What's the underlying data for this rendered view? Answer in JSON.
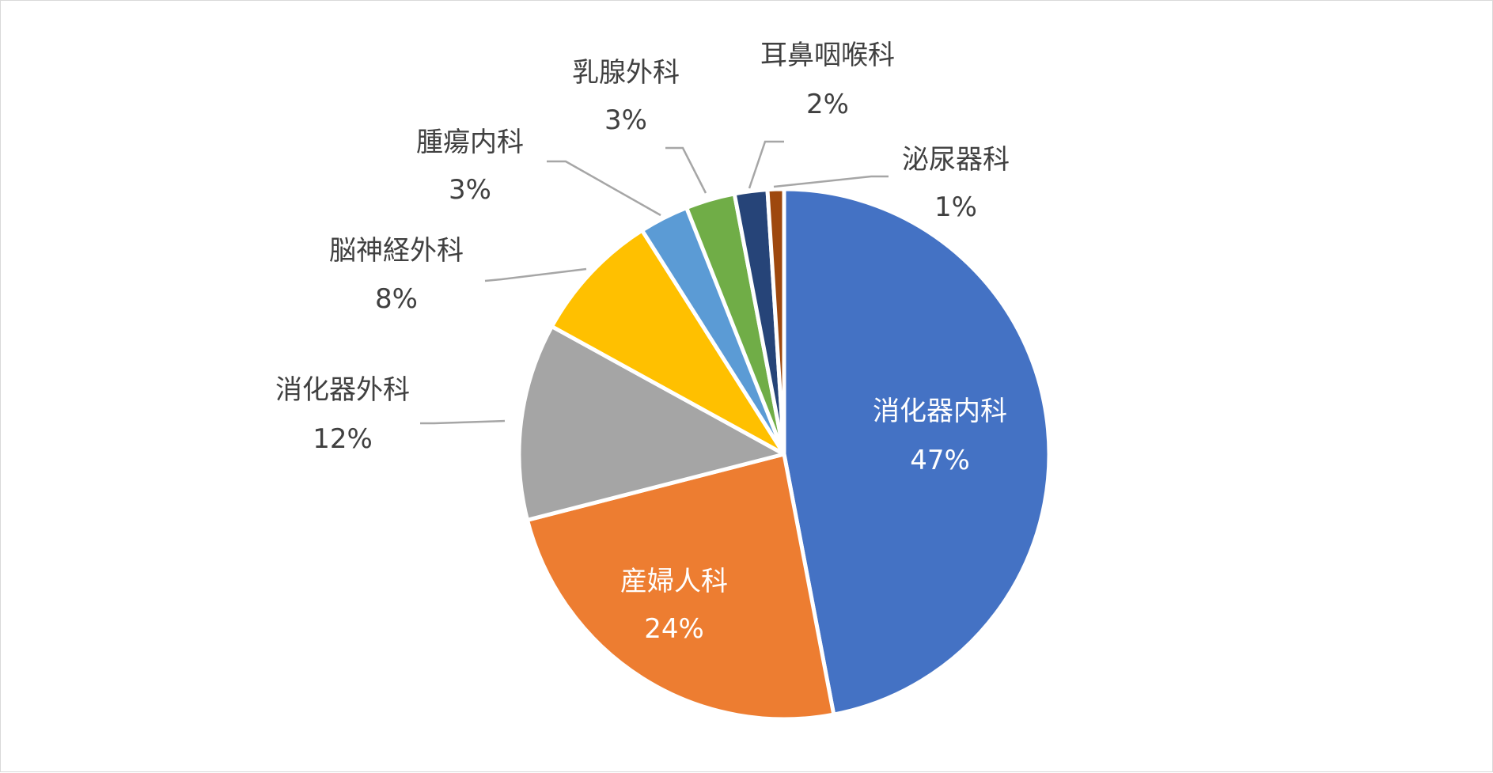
{
  "chart_data": {
    "type": "pie",
    "title": "",
    "slices": [
      {
        "label": "消化器内科",
        "value": 47,
        "value_label": "47%",
        "color": "#4472C4"
      },
      {
        "label": "産婦人科",
        "value": 24,
        "value_label": "24%",
        "color": "#ED7D31"
      },
      {
        "label": "消化器外科",
        "value": 12,
        "value_label": "12%",
        "color": "#A5A5A5"
      },
      {
        "label": "脳神経外科",
        "value": 8,
        "value_label": "8%",
        "color": "#FFC000"
      },
      {
        "label": "腫瘍内科",
        "value": 3,
        "value_label": "3%",
        "color": "#5B9BD5"
      },
      {
        "label": "乳腺外科",
        "value": 3,
        "value_label": "3%",
        "color": "#70AD47"
      },
      {
        "label": "耳鼻咽喉科",
        "value": 2,
        "value_label": "2%",
        "color": "#264478"
      },
      {
        "label": "泌尿器科",
        "value": 1,
        "value_label": "1%",
        "color": "#9E480E"
      }
    ],
    "legend": "none",
    "data_labels": "category name and percentage"
  }
}
